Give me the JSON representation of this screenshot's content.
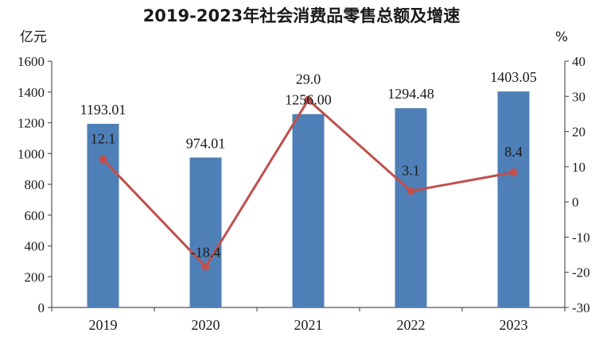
{
  "chart_data": {
    "type": "bar",
    "title": "2019-2023年社会消费品零售总额及增速",
    "y_unit_left": "亿元",
    "y_unit_right": "%",
    "categories": [
      "2019",
      "2020",
      "2021",
      "2022",
      "2023"
    ],
    "series": [
      {
        "type": "bar",
        "axis": "left",
        "values": [
          1193.01,
          974.01,
          1256.0,
          1294.48,
          1403.05
        ],
        "labels": [
          "1193.01",
          "974.01",
          "1256.00",
          "1294.48",
          "1403.05"
        ]
      },
      {
        "type": "line",
        "axis": "right",
        "values": [
          12.1,
          -18.4,
          29.0,
          3.1,
          8.4
        ],
        "labels": [
          "12.1",
          "-18.4",
          "29.0",
          "3.1",
          "8.4"
        ]
      }
    ],
    "ylim_left": [
      0,
      1600
    ],
    "yticks_left": [
      "0",
      "200",
      "400",
      "600",
      "800",
      "1000",
      "1200",
      "1400",
      "1600"
    ],
    "ylim_right": [
      -30,
      40
    ],
    "yticks_right": [
      "-30",
      "-20",
      "-10",
      "0",
      "10",
      "20",
      "30",
      "40"
    ],
    "colors": {
      "bar": "#4f7fb7",
      "line": "#c0504d"
    },
    "grid": false,
    "legend": "none"
  }
}
